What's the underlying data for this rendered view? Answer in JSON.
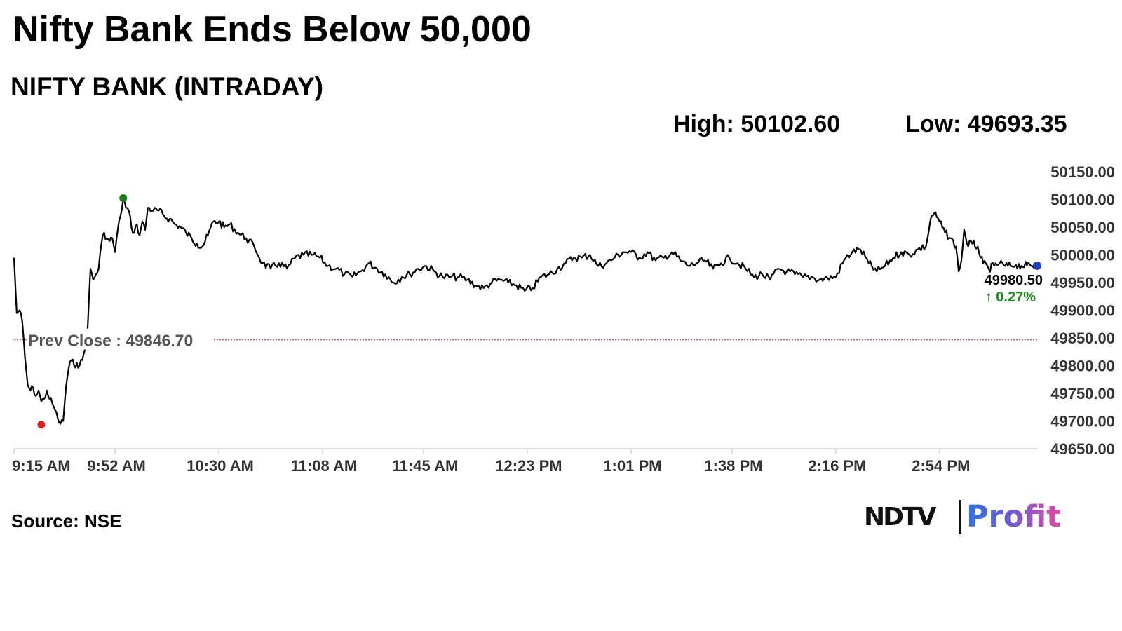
{
  "headline": "Nifty Bank Ends Below 50,000",
  "subtitle": "NIFTY BANK (INTRADAY)",
  "stats": {
    "high": "High: 50102.60",
    "low": "Low: 49693.35"
  },
  "source": "Source: NSE",
  "brand": {
    "ndtv": "NDTV",
    "profit": "Profit"
  },
  "colors": {
    "line": "#000000",
    "prev_close_line": "#d9534f",
    "high_marker": "#1a7f1a",
    "low_marker": "#e0201f",
    "last_marker": "#1f3fbf",
    "change_text": "#1a8a1a",
    "axis_line": "#d4d4d4"
  },
  "chart_data": {
    "type": "line",
    "title": "NIFTY BANK (INTRADAY)",
    "xlabel": "",
    "ylabel": "",
    "grid": false,
    "x_ticks": [
      "9:15 AM",
      "9:52 AM",
      "10:30 AM",
      "11:08 AM",
      "11:45 AM",
      "12:23 PM",
      "1:01 PM",
      "1:38 PM",
      "2:16 PM",
      "2:54 PM"
    ],
    "y_ticks": [
      "50150.00",
      "50100.00",
      "50050.00",
      "50000.00",
      "49950.00",
      "49900.00",
      "49850.00",
      "49800.00",
      "49750.00",
      "49700.00",
      "49650.00"
    ],
    "ylim": [
      49650,
      50150
    ],
    "x_range": [
      "9:15 AM",
      "3:30 PM"
    ],
    "prev_close": {
      "label": "Prev Close : 49846.70",
      "value": 49846.7
    },
    "high_point": {
      "time": "9:55 AM",
      "value": 50102.6
    },
    "low_point": {
      "time": "9:25 AM",
      "value": 49693.35
    },
    "last": {
      "label": "49980.50",
      "value": 49980.5,
      "change": "↑ 0.27%"
    },
    "series": [
      {
        "points": [
          [
            "9:15 AM",
            49995
          ],
          [
            "9:16 AM",
            49895
          ],
          [
            "9:17 AM",
            49900
          ],
          [
            "9:18 AM",
            49880
          ],
          [
            "9:19 AM",
            49815
          ],
          [
            "9:20 AM",
            49765
          ],
          [
            "9:21 AM",
            49755
          ],
          [
            "9:22 AM",
            49760
          ],
          [
            "9:23 AM",
            49745
          ],
          [
            "9:24 AM",
            49755
          ],
          [
            "9:25 AM",
            49735
          ],
          [
            "9:26 AM",
            49740
          ],
          [
            "9:27 AM",
            49755
          ],
          [
            "9:28 AM",
            49740
          ],
          [
            "9:29 AM",
            49732
          ],
          [
            "9:30 AM",
            49720
          ],
          [
            "9:31 AM",
            49705
          ],
          [
            "9:32 AM",
            49695
          ],
          [
            "9:33 AM",
            49700
          ],
          [
            "9:34 AM",
            49760
          ],
          [
            "9:35 AM",
            49795
          ],
          [
            "9:36 AM",
            49810
          ],
          [
            "9:37 AM",
            49800
          ],
          [
            "9:38 AM",
            49805
          ],
          [
            "9:39 AM",
            49800
          ],
          [
            "9:40 AM",
            49810
          ],
          [
            "9:41 AM",
            49830
          ],
          [
            "9:42 AM",
            49870
          ],
          [
            "9:43 AM",
            49975
          ],
          [
            "9:44 AM",
            49955
          ],
          [
            "9:45 AM",
            49965
          ],
          [
            "9:46 AM",
            49975
          ],
          [
            "9:47 AM",
            50020
          ],
          [
            "9:48 AM",
            50040
          ],
          [
            "9:49 AM",
            50030
          ],
          [
            "9:50 AM",
            50025
          ],
          [
            "9:51 AM",
            50030
          ],
          [
            "9:52 AM",
            50005
          ],
          [
            "9:53 AM",
            50045
          ],
          [
            "9:54 AM",
            50070
          ],
          [
            "9:55 AM",
            50102
          ],
          [
            "9:56 AM",
            50085
          ],
          [
            "9:57 AM",
            50080
          ],
          [
            "9:58 AM",
            50050
          ],
          [
            "9:59 AM",
            50040
          ],
          [
            "10:00 AM",
            50055
          ],
          [
            "10:01 AM",
            50035
          ],
          [
            "10:02 AM",
            50060
          ],
          [
            "10:03 AM",
            50045
          ],
          [
            "10:04 AM",
            50085
          ],
          [
            "10:06 AM",
            50080
          ],
          [
            "10:08 AM",
            50080
          ],
          [
            "10:10 AM",
            50070
          ],
          [
            "10:12 AM",
            50065
          ],
          [
            "10:14 AM",
            50055
          ],
          [
            "10:16 AM",
            50050
          ],
          [
            "10:18 AM",
            50040
          ],
          [
            "10:20 AM",
            50030
          ],
          [
            "10:22 AM",
            50020
          ],
          [
            "10:24 AM",
            50015
          ],
          [
            "10:26 AM",
            50035
          ],
          [
            "10:28 AM",
            50060
          ],
          [
            "10:30 AM",
            50060
          ],
          [
            "10:32 AM",
            50050
          ],
          [
            "10:34 AM",
            50055
          ],
          [
            "10:37 AM",
            50040
          ],
          [
            "10:40 AM",
            50030
          ],
          [
            "10:43 AM",
            50015
          ],
          [
            "10:46 AM",
            49985
          ],
          [
            "10:49 AM",
            49975
          ],
          [
            "10:52 AM",
            49985
          ],
          [
            "10:55 AM",
            49975
          ],
          [
            "10:58 AM",
            49995
          ],
          [
            "11:01 AM",
            50000
          ],
          [
            "11:04 AM",
            50000
          ],
          [
            "11:07 AM",
            49995
          ],
          [
            "11:10 AM",
            49980
          ],
          [
            "11:13 AM",
            49975
          ],
          [
            "11:16 AM",
            49965
          ],
          [
            "11:19 AM",
            49960
          ],
          [
            "11:22 AM",
            49970
          ],
          [
            "11:25 AM",
            49985
          ],
          [
            "11:28 AM",
            49975
          ],
          [
            "11:31 AM",
            49965
          ],
          [
            "11:34 AM",
            49950
          ],
          [
            "11:37 AM",
            49960
          ],
          [
            "11:40 AM",
            49965
          ],
          [
            "11:43 AM",
            49975
          ],
          [
            "11:46 AM",
            49980
          ],
          [
            "11:49 AM",
            49970
          ],
          [
            "11:52 AM",
            49960
          ],
          [
            "11:55 AM",
            49960
          ],
          [
            "11:58 AM",
            49960
          ],
          [
            "12:01 PM",
            49955
          ],
          [
            "12:04 PM",
            49945
          ],
          [
            "12:07 PM",
            49940
          ],
          [
            "12:10 PM",
            49950
          ],
          [
            "12:13 PM",
            49955
          ],
          [
            "12:16 PM",
            49950
          ],
          [
            "12:19 PM",
            49945
          ],
          [
            "12:22 PM",
            49935
          ],
          [
            "12:25 PM",
            49940
          ],
          [
            "12:28 PM",
            49960
          ],
          [
            "12:31 PM",
            49965
          ],
          [
            "12:34 PM",
            49975
          ],
          [
            "12:37 PM",
            49985
          ],
          [
            "12:40 PM",
            49995
          ],
          [
            "12:43 PM",
            49995
          ],
          [
            "12:46 PM",
            50000
          ],
          [
            "12:49 PM",
            49980
          ],
          [
            "12:52 PM",
            49985
          ],
          [
            "12:55 PM",
            49995
          ],
          [
            "12:58 PM",
            50005
          ],
          [
            "1:01 PM",
            50005
          ],
          [
            "1:04 PM",
            49995
          ],
          [
            "1:07 PM",
            50005
          ],
          [
            "1:10 PM",
            49990
          ],
          [
            "1:13 PM",
            49995
          ],
          [
            "1:16 PM",
            50005
          ],
          [
            "1:19 PM",
            49990
          ],
          [
            "1:22 PM",
            49980
          ],
          [
            "1:25 PM",
            49985
          ],
          [
            "1:28 PM",
            49990
          ],
          [
            "1:31 PM",
            49975
          ],
          [
            "1:34 PM",
            49985
          ],
          [
            "1:37 PM",
            49995
          ],
          [
            "1:40 PM",
            49985
          ],
          [
            "1:43 PM",
            49975
          ],
          [
            "1:46 PM",
            49960
          ],
          [
            "1:49 PM",
            49965
          ],
          [
            "1:52 PM",
            49955
          ],
          [
            "1:55 PM",
            49975
          ],
          [
            "1:58 PM",
            49970
          ],
          [
            "2:01 PM",
            49965
          ],
          [
            "2:04 PM",
            49960
          ],
          [
            "2:07 PM",
            49960
          ],
          [
            "2:10 PM",
            49955
          ],
          [
            "2:13 PM",
            49958
          ],
          [
            "2:16 PM",
            49960
          ],
          [
            "2:19 PM",
            49990
          ],
          [
            "2:22 PM",
            50005
          ],
          [
            "2:25 PM",
            50010
          ],
          [
            "2:28 PM",
            49985
          ],
          [
            "2:31 PM",
            49970
          ],
          [
            "2:34 PM",
            49980
          ],
          [
            "2:37 PM",
            49995
          ],
          [
            "2:40 PM",
            50005
          ],
          [
            "2:43 PM",
            50000
          ],
          [
            "2:46 PM",
            50010
          ],
          [
            "2:49 PM",
            50015
          ],
          [
            "2:51 PM",
            50070
          ],
          [
            "2:52 PM",
            50075
          ],
          [
            "2:54 PM",
            50060
          ],
          [
            "2:56 PM",
            50040
          ],
          [
            "2:58 PM",
            50030
          ],
          [
            "3:00 PM",
            50015
          ],
          [
            "3:01 PM",
            49970
          ],
          [
            "3:02 PM",
            49990
          ],
          [
            "3:03 PM",
            50045
          ],
          [
            "3:04 PM",
            50020
          ],
          [
            "3:06 PM",
            50020
          ],
          [
            "3:08 PM",
            50015
          ],
          [
            "3:09 PM",
            49995
          ],
          [
            "3:10 PM",
            49985
          ],
          [
            "3:12 PM",
            49975
          ],
          [
            "3:14 PM",
            49980
          ],
          [
            "3:16 PM",
            49985
          ],
          [
            "3:18 PM",
            49980
          ],
          [
            "3:20 PM",
            49980
          ],
          [
            "3:22 PM",
            49982
          ],
          [
            "3:24 PM",
            49980
          ],
          [
            "3:26 PM",
            49981
          ],
          [
            "3:28 PM",
            49980
          ],
          [
            "3:30 PM",
            49980.5
          ]
        ]
      }
    ]
  }
}
